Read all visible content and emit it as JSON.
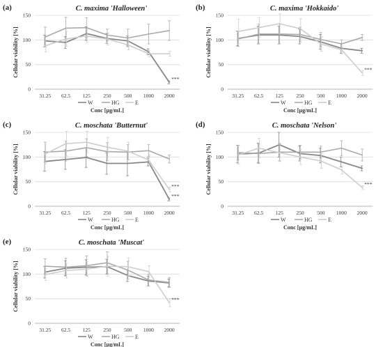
{
  "colors": {
    "W": "#878787",
    "HG": "#a9a9a9",
    "E": "#cdcdcd",
    "grid": "#dcdcdc",
    "axis": "#9a9a9a"
  },
  "chart_data": [
    {
      "type": "line",
      "label": "(a)",
      "title": "C. maxima 'Halloween'",
      "xlabel": "Conc [µg/mL]",
      "ylabel": "Cellular viability [%]",
      "ylim": [
        0,
        150
      ],
      "yticks": [
        "0",
        "50",
        "100",
        "150"
      ],
      "categories": [
        "31.25",
        "62.5",
        "125",
        "250",
        "500",
        "1000",
        "2000"
      ],
      "grid": true,
      "legend": "bottom-right",
      "series": [
        {
          "name": "W",
          "values": [
            98,
            95,
            113,
            103,
            98,
            76,
            14
          ],
          "errors": [
            12,
            12,
            14,
            10,
            10,
            6,
            3
          ]
        },
        {
          "name": "HG",
          "values": [
            106,
            124,
            125,
            110,
            104,
            112,
            119
          ],
          "errors": [
            20,
            22,
            20,
            12,
            18,
            20,
            20
          ]
        },
        {
          "name": "E",
          "values": [
            88,
            102,
            108,
            102,
            90,
            72,
            72
          ],
          "errors": [
            12,
            15,
            13,
            12,
            10,
            6,
            5
          ]
        }
      ],
      "annotations": [
        "***"
      ]
    },
    {
      "type": "line",
      "label": "(b)",
      "title": "C. maxima 'Hokkaido'",
      "xlabel": "Conc [µg/mL]",
      "ylabel": "Cellular viability [%]",
      "ylim": [
        0,
        150
      ],
      "yticks": [
        "0",
        "50",
        "100",
        "150"
      ],
      "categories": [
        "31.25",
        "62.5",
        "125",
        "250",
        "500",
        "1000",
        "2000"
      ],
      "grid": true,
      "legend": "bottom-right",
      "series": [
        {
          "name": "W",
          "values": [
            103,
            110,
            110,
            107,
            96,
            83,
            78
          ],
          "errors": [
            15,
            18,
            18,
            15,
            15,
            10,
            5
          ]
        },
        {
          "name": "HG",
          "values": [
            102,
            112,
            112,
            111,
            101,
            92,
            105
          ],
          "errors": [
            15,
            20,
            20,
            15,
            14,
            8,
            6
          ]
        },
        {
          "name": "E",
          "values": [
            117,
            125,
            133,
            123,
            92,
            80,
            33
          ],
          "errors": [
            25,
            20,
            20,
            20,
            15,
            8,
            5
          ]
        }
      ],
      "annotations": [
        "***"
      ]
    },
    {
      "type": "line",
      "label": "(c)",
      "title": "C. moschata 'Butternut'",
      "xlabel": "Conc [µg/mL]",
      "ylabel": "Cellular viability [%]",
      "ylim": [
        0,
        150
      ],
      "yticks": [
        "0",
        "50",
        "100",
        "150"
      ],
      "categories": [
        "31.25",
        "62.5",
        "125",
        "250",
        "500",
        "1000",
        "2000"
      ],
      "grid": true,
      "legend": "bottom-right",
      "series": [
        {
          "name": "W",
          "values": [
            91,
            95,
            99,
            87,
            87,
            90,
            14
          ],
          "errors": [
            20,
            20,
            20,
            22,
            25,
            8,
            3
          ]
        },
        {
          "name": "HG",
          "values": [
            110,
            112,
            119,
            111,
            110,
            113,
            96
          ],
          "errors": [
            20,
            20,
            18,
            18,
            15,
            12,
            8
          ]
        },
        {
          "name": "E",
          "values": [
            106,
            127,
            130,
            120,
            112,
            94,
            34
          ],
          "errors": [
            20,
            25,
            22,
            20,
            18,
            10,
            5
          ]
        }
      ],
      "annotations": [
        "***",
        "***"
      ]
    },
    {
      "type": "line",
      "label": "(d)",
      "title": "C. moschata 'Nelson'",
      "xlabel": "Conc [µg/mL]",
      "ylabel": "Cellular viability [%]",
      "ylim": [
        0,
        150
      ],
      "yticks": [
        "0",
        "50",
        "100",
        "150"
      ],
      "categories": [
        "31.25",
        "62.5",
        "125",
        "250",
        "500",
        "1000",
        "2000"
      ],
      "grid": true,
      "legend": "bottom-right",
      "series": [
        {
          "name": "W",
          "values": [
            106,
            108,
            125,
            107,
            103,
            90,
            77
          ],
          "errors": [
            18,
            20,
            25,
            15,
            15,
            10,
            5
          ]
        },
        {
          "name": "HG",
          "values": [
            109,
            107,
            110,
            110,
            110,
            118,
            104
          ],
          "errors": [
            15,
            20,
            18,
            14,
            12,
            15,
            12
          ]
        },
        {
          "name": "E",
          "values": [
            104,
            118,
            109,
            100,
            92,
            74,
            38
          ],
          "errors": [
            18,
            20,
            18,
            15,
            15,
            8,
            4
          ]
        }
      ],
      "annotations": [
        "***"
      ]
    },
    {
      "type": "line",
      "label": "(e)",
      "title": "C. moschata 'Muscat'",
      "xlabel": "Conc [µg/mL]",
      "ylabel": "Cellular viability [%]",
      "ylim": [
        0,
        150
      ],
      "yticks": [
        "0",
        "50",
        "100",
        "150"
      ],
      "categories": [
        "31.25",
        "62.5",
        "125",
        "250",
        "500",
        "1000",
        "2000"
      ],
      "grid": true,
      "legend": "bottom-right",
      "series": [
        {
          "name": "W",
          "values": [
            104,
            112,
            114,
            115,
            97,
            86,
            82
          ],
          "errors": [
            12,
            15,
            15,
            15,
            12,
            10,
            8
          ]
        },
        {
          "name": "HG",
          "values": [
            116,
            114,
            117,
            123,
            108,
            88,
            83
          ],
          "errors": [
            15,
            18,
            20,
            22,
            18,
            12,
            10
          ]
        },
        {
          "name": "E",
          "values": [
            99,
            107,
            110,
            116,
            115,
            105,
            42
          ],
          "errors": [
            12,
            15,
            15,
            20,
            18,
            12,
            8
          ]
        }
      ],
      "annotations": [
        "***"
      ]
    }
  ]
}
